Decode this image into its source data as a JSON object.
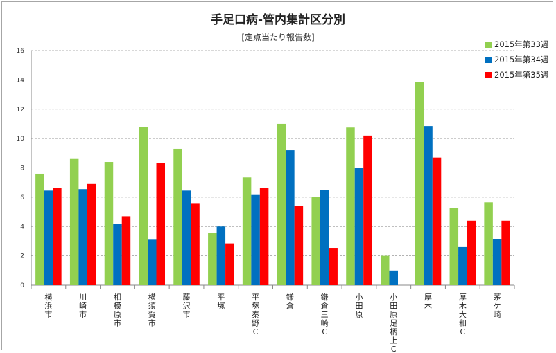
{
  "chart_data": {
    "type": "bar",
    "title": "手足口病-管内集計区分別",
    "subtitle": "[定点当たり報告数]",
    "xlabel": "",
    "ylabel": "",
    "ylim": [
      0,
      16
    ],
    "yticks": [
      0,
      2,
      4,
      6,
      8,
      10,
      12,
      14,
      16
    ],
    "grid": true,
    "legend_position": "top-right",
    "categories": [
      "横浜市",
      "川崎市",
      "相模原市",
      "横須賀市",
      "藤沢市",
      "平塚",
      "平塚秦野C",
      "鎌倉",
      "鎌倉三崎C",
      "小田原",
      "小田原足柄上C",
      "厚木",
      "厚木大和C",
      "茅ケ崎"
    ],
    "series": [
      {
        "name": "2015年第33週",
        "color": "#92d050",
        "values": [
          7.6,
          8.65,
          8.4,
          10.8,
          9.3,
          3.55,
          7.35,
          11.0,
          6.0,
          10.75,
          2.0,
          13.85,
          5.25,
          5.65
        ]
      },
      {
        "name": "2015年第34週",
        "color": "#0070c0",
        "values": [
          6.45,
          6.55,
          4.2,
          3.1,
          6.45,
          4.0,
          6.15,
          9.2,
          6.5,
          8.0,
          1.0,
          10.85,
          2.6,
          3.15
        ]
      },
      {
        "name": "2015年第35週",
        "color": "#ff0000",
        "values": [
          6.65,
          6.9,
          4.7,
          8.35,
          5.55,
          2.85,
          6.65,
          5.4,
          2.5,
          10.2,
          0,
          8.7,
          4.4,
          4.4
        ]
      }
    ]
  }
}
